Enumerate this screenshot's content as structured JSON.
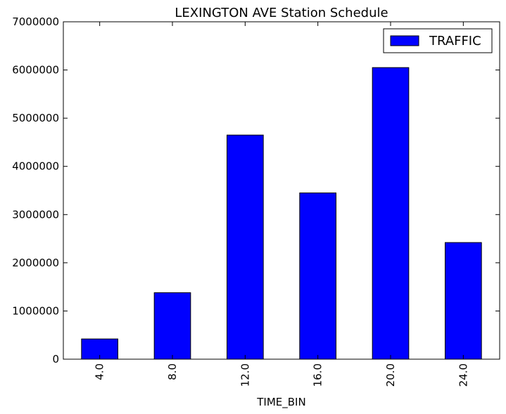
{
  "chart_data": {
    "type": "bar",
    "title": "LEXINGTON AVE Station Schedule",
    "xlabel": "TIME_BIN",
    "ylabel": "",
    "categories": [
      "4.0",
      "8.0",
      "12.0",
      "16.0",
      "20.0",
      "24.0"
    ],
    "series": [
      {
        "name": "TRAFFIC",
        "color": "#0000ff",
        "values": [
          420000,
          1380000,
          4650000,
          3450000,
          6050000,
          2420000
        ]
      }
    ],
    "ylim": [
      0,
      7000000
    ],
    "yticks": [
      0,
      1000000,
      2000000,
      3000000,
      4000000,
      5000000,
      6000000,
      7000000
    ],
    "ytick_labels": [
      "0",
      "1000000",
      "2000000",
      "3000000",
      "4000000",
      "5000000",
      "6000000",
      "7000000"
    ],
    "grid": false,
    "legend": "top-right",
    "xtick_rotation": "vertical"
  }
}
